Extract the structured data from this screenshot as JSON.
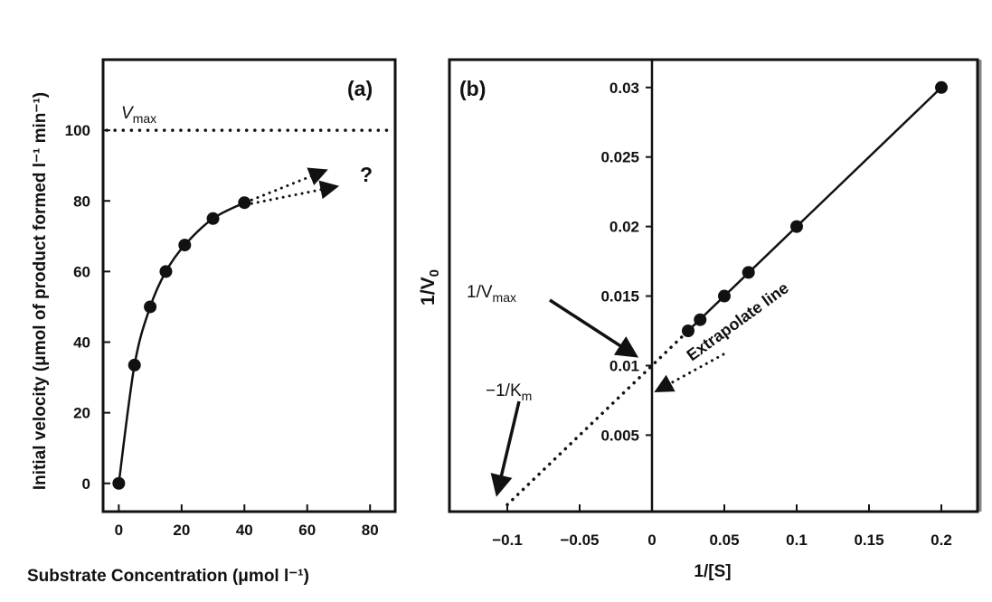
{
  "chart_data": [
    {
      "type": "line",
      "panel_label": "(a)",
      "xlabel": "Substrate Concentration (μmol l⁻¹)",
      "ylabel": "Initial velocity (μmol of product formed l⁻¹ min⁻¹)",
      "xlim": [
        -5,
        88
      ],
      "ylim": [
        -8,
        120
      ],
      "xticks": [
        0,
        20,
        40,
        60,
        80
      ],
      "yticks": [
        0,
        20,
        40,
        60,
        80,
        100
      ],
      "series": [
        {
          "x": [
            0,
            5,
            10,
            15,
            21,
            30,
            40
          ],
          "y": [
            0,
            33.5,
            50,
            60,
            67.5,
            75,
            79.5
          ]
        }
      ],
      "vmax_value": 100,
      "vmax_label": "V",
      "vmax_sub": "max",
      "question_mark": "?",
      "grid": false
    },
    {
      "type": "line",
      "panel_label": "(b)",
      "xlabel": "1/[S]",
      "ylabel": "1/V",
      "ylabel_sub": "0",
      "xlim": [
        -0.14,
        0.225
      ],
      "ylim": [
        -0.0005,
        0.032
      ],
      "xticks": [
        "-0.1",
        "-0.05",
        "0",
        "0.05",
        "0.1",
        "0.15",
        "0.2"
      ],
      "yticks": [
        "0.005",
        "0.01",
        "0.015",
        "0.02",
        "0.025",
        "0.03"
      ],
      "series": [
        {
          "x": [
            0.025,
            0.0333,
            0.05,
            0.0667,
            0.1,
            0.2
          ],
          "y": [
            0.0125,
            0.0133,
            0.015,
            0.0167,
            0.02,
            0.03
          ]
        }
      ],
      "extrapolation": {
        "x": [
          -0.1,
          0.025
        ],
        "y": [
          0.0,
          0.0125
        ]
      },
      "annotations": {
        "vmax_label": "1/V",
        "vmax_sub": "max",
        "km_label": "−1/K",
        "km_sub": "m",
        "extrapolate": "Extrapolate line"
      },
      "grid": false
    }
  ]
}
